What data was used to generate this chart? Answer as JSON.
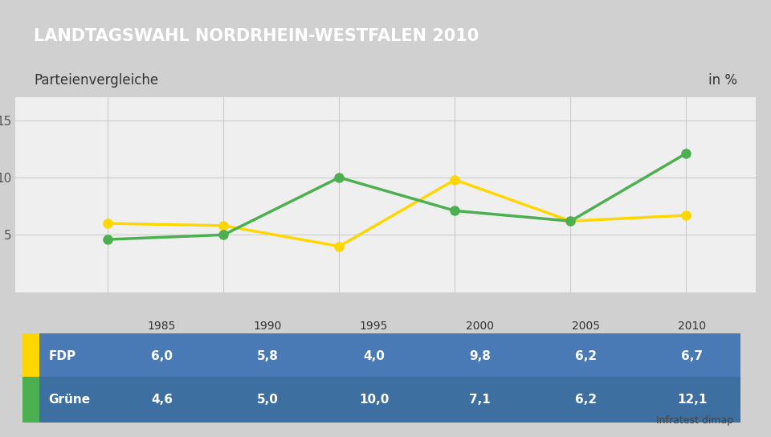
{
  "title": "LANDTAGSWAHL NORDRHEIN-WESTFALEN 2010",
  "subtitle": "Parteienvergleiche",
  "unit": "in %",
  "source": "Infratest dimap",
  "years": [
    1985,
    1990,
    1995,
    2000,
    2005,
    2010
  ],
  "series": [
    {
      "name": "FDP",
      "values": [
        6.0,
        5.8,
        4.0,
        9.8,
        6.2,
        6.7
      ],
      "color": "#FFD700",
      "marker_color": "#FFD700"
    },
    {
      "name": "Grüne",
      "values": [
        4.6,
        5.0,
        10.0,
        7.1,
        6.2,
        12.1
      ],
      "color": "#4CAF50",
      "marker_color": "#4CAF50"
    }
  ],
  "xlim": [
    1981,
    2013
  ],
  "ylim": [
    0,
    17
  ],
  "yticks": [
    5,
    10,
    15
  ],
  "bg_color": "#d0d0d0",
  "plot_bg_color": "#efefef",
  "header_bg_color": "#1a3a6b",
  "header_text_color": "#ffffff",
  "subheader_bg_color": "#f8f8f8",
  "subheader_text_color": "#333333",
  "table_header_bg": "#f0f0f0",
  "table_row1_bg": "#4a7ab5",
  "table_row2_bg": "#3d6fa0",
  "table_text_color": "#ffffff",
  "table_header_text_color": "#333333",
  "grid_color": "#cccccc",
  "line_width": 2.5,
  "marker_size": 8
}
